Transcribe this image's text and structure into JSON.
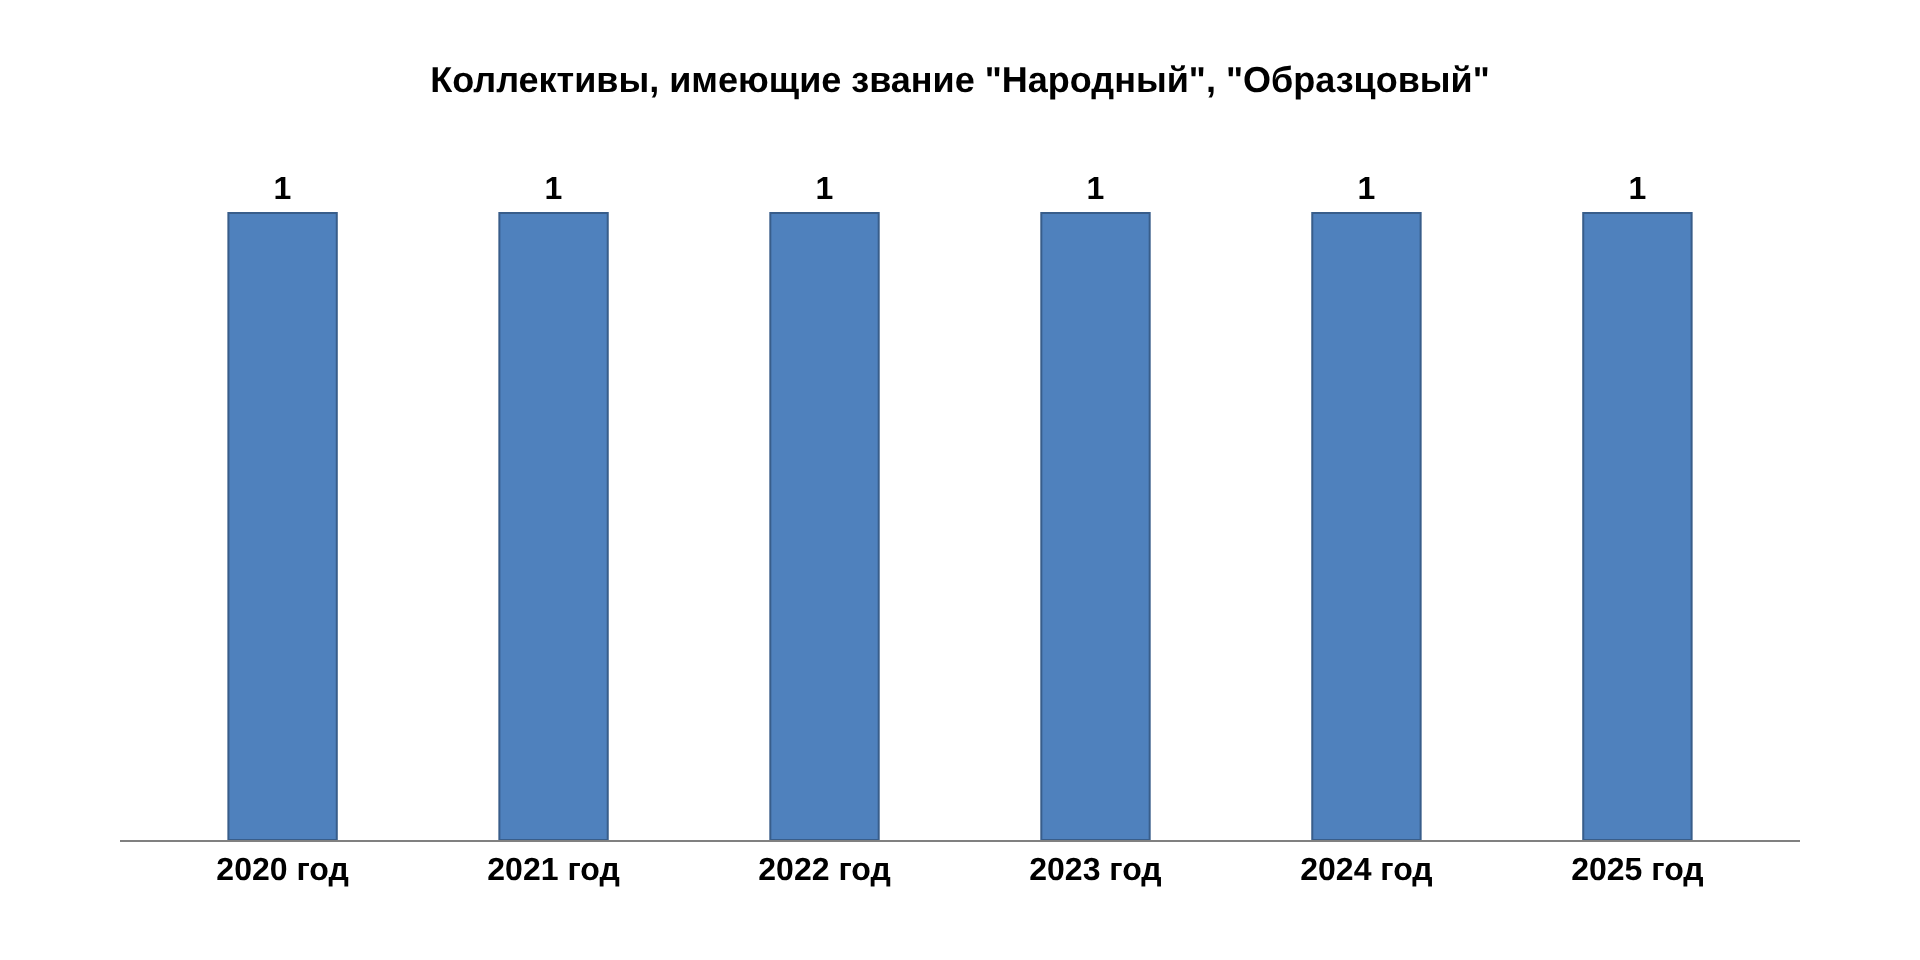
{
  "chart_data": {
    "type": "bar",
    "title": "Коллективы, имеющие звание \"Народный\", \"Образцовый\"",
    "categories": [
      "2020 год",
      "2021 год",
      "2022 год",
      "2023 год",
      "2024 год",
      "2025 год"
    ],
    "values": [
      1,
      1,
      1,
      1,
      1,
      1
    ],
    "color": "#4f81bd",
    "data_labels": true
  }
}
